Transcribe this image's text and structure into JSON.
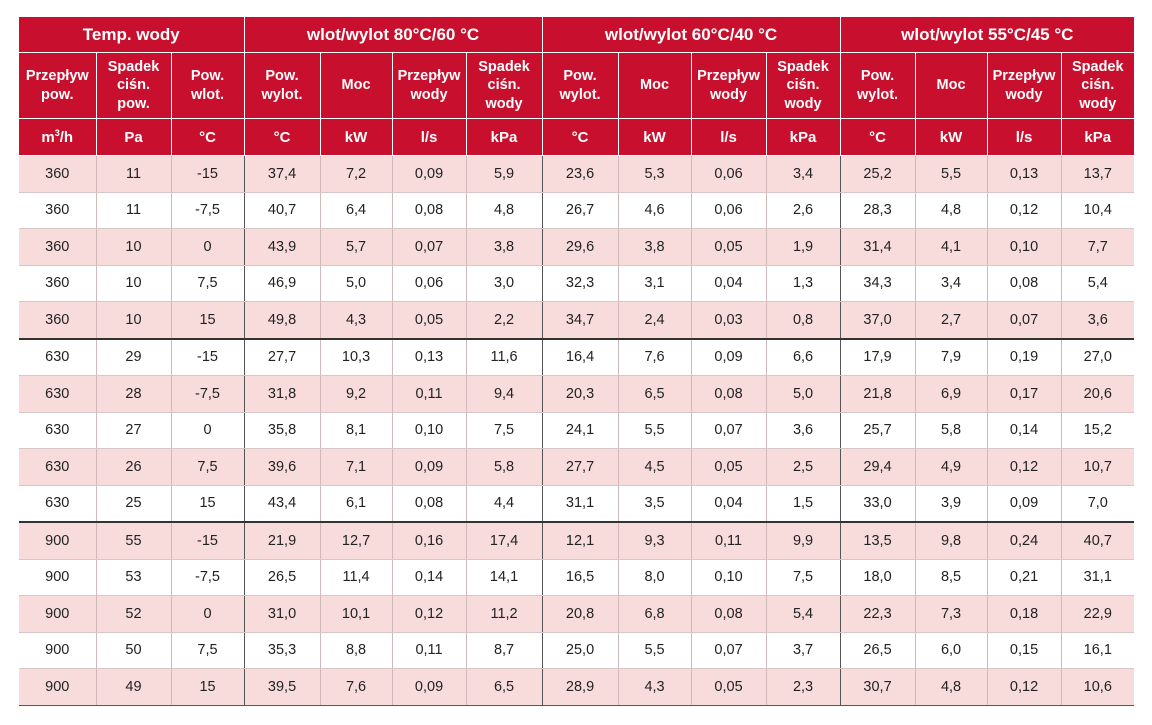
{
  "header": {
    "groups": [
      {
        "label": "Temp. wody",
        "span": 3
      },
      {
        "label": "wlot/wylot 80°C/60 °C",
        "span": 4
      },
      {
        "label": "wlot/wylot 60°C/40 °C",
        "span": 4
      },
      {
        "label": "wlot/wylot 55°C/45 °C",
        "span": 4
      }
    ],
    "columns": [
      [
        "Przepływ",
        "pow."
      ],
      [
        "Spadek",
        "ciśn.",
        "pow."
      ],
      [
        "Pow.",
        "wlot."
      ],
      [
        "Pow.",
        "wylot."
      ],
      [
        "Moc"
      ],
      [
        "Przepływ",
        "wody"
      ],
      [
        "Spadek",
        "ciśn.",
        "wody"
      ],
      [
        "Pow.",
        "wylot."
      ],
      [
        "Moc"
      ],
      [
        "Przepływ",
        "wody"
      ],
      [
        "Spadek",
        "ciśn.",
        "wody"
      ],
      [
        "Pow.",
        "wylot."
      ],
      [
        "Moc"
      ],
      [
        "Przepływ",
        "wody"
      ],
      [
        "Spadek",
        "ciśn.",
        "wody"
      ]
    ],
    "units": [
      "m³/h",
      "Pa",
      "°C",
      "°C",
      "kW",
      "l/s",
      "kPa",
      "°C",
      "kW",
      "l/s",
      "kPa",
      "°C",
      "kW",
      "l/s",
      "kPa"
    ]
  },
  "rows": [
    [
      "360",
      "11",
      "-15",
      "37,4",
      "7,2",
      "0,09",
      "5,9",
      "23,6",
      "5,3",
      "0,06",
      "3,4",
      "25,2",
      "5,5",
      "0,13",
      "13,7"
    ],
    [
      "360",
      "11",
      "-7,5",
      "40,7",
      "6,4",
      "0,08",
      "4,8",
      "26,7",
      "4,6",
      "0,06",
      "2,6",
      "28,3",
      "4,8",
      "0,12",
      "10,4"
    ],
    [
      "360",
      "10",
      "0",
      "43,9",
      "5,7",
      "0,07",
      "3,8",
      "29,6",
      "3,8",
      "0,05",
      "1,9",
      "31,4",
      "4,1",
      "0,10",
      "7,7"
    ],
    [
      "360",
      "10",
      "7,5",
      "46,9",
      "5,0",
      "0,06",
      "3,0",
      "32,3",
      "3,1",
      "0,04",
      "1,3",
      "34,3",
      "3,4",
      "0,08",
      "5,4"
    ],
    [
      "360",
      "10",
      "15",
      "49,8",
      "4,3",
      "0,05",
      "2,2",
      "34,7",
      "2,4",
      "0,03",
      "0,8",
      "37,0",
      "2,7",
      "0,07",
      "3,6"
    ],
    [
      "630",
      "29",
      "-15",
      "27,7",
      "10,3",
      "0,13",
      "11,6",
      "16,4",
      "7,6",
      "0,09",
      "6,6",
      "17,9",
      "7,9",
      "0,19",
      "27,0"
    ],
    [
      "630",
      "28",
      "-7,5",
      "31,8",
      "9,2",
      "0,11",
      "9,4",
      "20,3",
      "6,5",
      "0,08",
      "5,0",
      "21,8",
      "6,9",
      "0,17",
      "20,6"
    ],
    [
      "630",
      "27",
      "0",
      "35,8",
      "8,1",
      "0,10",
      "7,5",
      "24,1",
      "5,5",
      "0,07",
      "3,6",
      "25,7",
      "5,8",
      "0,14",
      "15,2"
    ],
    [
      "630",
      "26",
      "7,5",
      "39,6",
      "7,1",
      "0,09",
      "5,8",
      "27,7",
      "4,5",
      "0,05",
      "2,5",
      "29,4",
      "4,9",
      "0,12",
      "10,7"
    ],
    [
      "630",
      "25",
      "15",
      "43,4",
      "6,1",
      "0,08",
      "4,4",
      "31,1",
      "3,5",
      "0,04",
      "1,5",
      "33,0",
      "3,9",
      "0,09",
      "7,0"
    ],
    [
      "900",
      "55",
      "-15",
      "21,9",
      "12,7",
      "0,16",
      "17,4",
      "12,1",
      "9,3",
      "0,11",
      "9,9",
      "13,5",
      "9,8",
      "0,24",
      "40,7"
    ],
    [
      "900",
      "53",
      "-7,5",
      "26,5",
      "11,4",
      "0,14",
      "14,1",
      "16,5",
      "8,0",
      "0,10",
      "7,5",
      "18,0",
      "8,5",
      "0,21",
      "31,1"
    ],
    [
      "900",
      "52",
      "0",
      "31,0",
      "10,1",
      "0,12",
      "11,2",
      "20,8",
      "6,8",
      "0,08",
      "5,4",
      "22,3",
      "7,3",
      "0,18",
      "22,9"
    ],
    [
      "900",
      "50",
      "7,5",
      "35,3",
      "8,8",
      "0,11",
      "8,7",
      "25,0",
      "5,5",
      "0,07",
      "3,7",
      "26,5",
      "6,0",
      "0,15",
      "16,1"
    ],
    [
      "900",
      "49",
      "15",
      "39,5",
      "7,6",
      "0,09",
      "6,5",
      "28,9",
      "4,3",
      "0,05",
      "2,3",
      "30,7",
      "4,8",
      "0,12",
      "10,6"
    ]
  ],
  "colors": {
    "header_bg": "#c8102e",
    "header_text": "#ffffff",
    "row_alt": "#f8dcdc",
    "row_plain": "#ffffff"
  }
}
